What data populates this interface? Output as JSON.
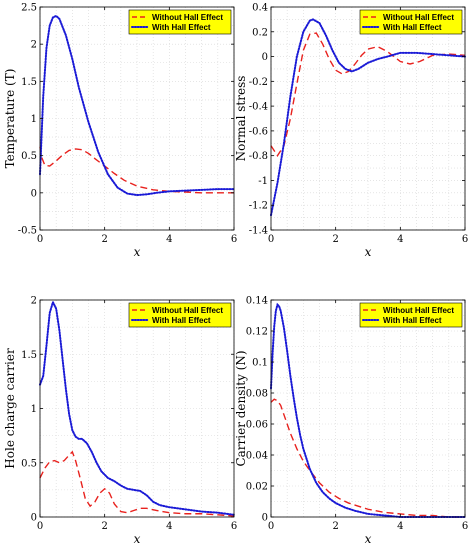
{
  "colors": {
    "without": "#e8221e",
    "with": "#1a1ad6",
    "legend_bg": "#ffff00",
    "grid": "#d6d6d6"
  },
  "legend": {
    "without": "Without Hall Effect",
    "with": "With Hall Effect"
  },
  "chart_data": [
    {
      "type": "line",
      "xlabel": "x",
      "ylabel": "Temperature (T)",
      "xlim": [
        0,
        6
      ],
      "ylim": [
        -0.5,
        2.5
      ],
      "xticks": [
        0,
        2,
        4,
        6
      ],
      "yticks": [
        -0.5,
        0,
        0.5,
        1,
        1.5,
        2,
        2.5
      ],
      "grid": true,
      "legend_position": "top-right",
      "series": [
        {
          "name": "Without Hall Effect",
          "x": [
            0,
            0.05,
            0.15,
            0.3,
            0.5,
            0.7,
            0.9,
            1.1,
            1.3,
            1.5,
            1.7,
            2.0,
            2.3,
            2.6,
            3.0,
            3.5,
            4.0,
            4.5,
            5.0,
            6.0
          ],
          "y": [
            0.62,
            0.48,
            0.37,
            0.36,
            0.43,
            0.51,
            0.57,
            0.59,
            0.58,
            0.53,
            0.46,
            0.36,
            0.26,
            0.17,
            0.09,
            0.04,
            0.02,
            0.01,
            0.0,
            0.0
          ]
        },
        {
          "name": "With Hall Effect",
          "x": [
            0,
            0.1,
            0.2,
            0.3,
            0.4,
            0.5,
            0.6,
            0.8,
            1.0,
            1.2,
            1.5,
            1.8,
            2.1,
            2.4,
            2.7,
            3.0,
            3.3,
            3.6,
            4.0,
            4.5,
            5.0,
            5.5,
            6.0
          ],
          "y": [
            0.25,
            1.3,
            1.95,
            2.25,
            2.36,
            2.38,
            2.34,
            2.12,
            1.8,
            1.42,
            0.95,
            0.55,
            0.25,
            0.07,
            -0.01,
            -0.03,
            -0.02,
            0.0,
            0.02,
            0.03,
            0.04,
            0.05,
            0.05
          ]
        }
      ]
    },
    {
      "type": "line",
      "xlabel": "x",
      "ylabel": "Normal stress",
      "xlim": [
        0,
        6
      ],
      "ylim": [
        -1.4,
        0.4
      ],
      "xticks": [
        0,
        2,
        4,
        6
      ],
      "yticks": [
        -1.4,
        -1.2,
        -1,
        -0.8,
        -0.6,
        -0.4,
        -0.2,
        0,
        0.2,
        0.4
      ],
      "grid": true,
      "legend_position": "top-right",
      "series": [
        {
          "name": "Without Hall Effect",
          "x": [
            0,
            0.2,
            0.4,
            0.6,
            0.8,
            1.0,
            1.2,
            1.4,
            1.6,
            1.8,
            2.0,
            2.2,
            2.4,
            2.6,
            2.8,
            3.0,
            3.3,
            3.6,
            4.0,
            4.3,
            4.6,
            5.0,
            5.5,
            6.0
          ],
          "y": [
            -0.72,
            -0.8,
            -0.72,
            -0.5,
            -0.22,
            0.05,
            0.18,
            0.19,
            0.1,
            -0.02,
            -0.11,
            -0.14,
            -0.12,
            -0.06,
            0.01,
            0.06,
            0.08,
            0.04,
            -0.04,
            -0.06,
            -0.04,
            0.01,
            0.02,
            0.01
          ]
        },
        {
          "name": "With Hall Effect",
          "x": [
            0,
            0.2,
            0.4,
            0.6,
            0.8,
            1.0,
            1.2,
            1.3,
            1.5,
            1.7,
            1.9,
            2.1,
            2.3,
            2.5,
            2.7,
            3.0,
            3.3,
            3.6,
            4.0,
            4.5,
            5.0,
            5.5,
            6.0
          ],
          "y": [
            -1.28,
            -1.02,
            -0.7,
            -0.32,
            0.0,
            0.2,
            0.29,
            0.3,
            0.27,
            0.17,
            0.05,
            -0.05,
            -0.1,
            -0.12,
            -0.1,
            -0.05,
            -0.02,
            0.0,
            0.03,
            0.03,
            0.02,
            0.01,
            0.0
          ]
        }
      ]
    },
    {
      "type": "line",
      "xlabel": "x",
      "ylabel": "Hole charge carrier",
      "xlim": [
        0,
        6
      ],
      "ylim": [
        0,
        2
      ],
      "xticks": [
        0,
        2,
        4,
        6
      ],
      "yticks": [
        0,
        0.5,
        1,
        1.5,
        2
      ],
      "grid": true,
      "legend_position": "top-right",
      "series": [
        {
          "name": "Without Hall Effect",
          "x": [
            0,
            0.15,
            0.3,
            0.45,
            0.6,
            0.75,
            0.9,
            1.0,
            1.1,
            1.25,
            1.4,
            1.55,
            1.7,
            1.85,
            2.0,
            2.15,
            2.3,
            2.5,
            2.7,
            2.9,
            3.1,
            3.3,
            3.6,
            4.0,
            4.5,
            5.0,
            5.5,
            6.0
          ],
          "y": [
            0.36,
            0.45,
            0.51,
            0.52,
            0.5,
            0.52,
            0.57,
            0.6,
            0.52,
            0.35,
            0.17,
            0.1,
            0.14,
            0.22,
            0.26,
            0.22,
            0.12,
            0.05,
            0.04,
            0.06,
            0.08,
            0.08,
            0.06,
            0.04,
            0.03,
            0.03,
            0.02,
            0.01
          ]
        },
        {
          "name": "With Hall Effect",
          "x": [
            0,
            0.1,
            0.2,
            0.3,
            0.4,
            0.5,
            0.6,
            0.7,
            0.8,
            0.9,
            1.0,
            1.1,
            1.2,
            1.3,
            1.45,
            1.6,
            1.75,
            1.9,
            2.1,
            2.3,
            2.5,
            2.7,
            2.9,
            3.1,
            3.3,
            3.5,
            3.7,
            4.0,
            4.5,
            5.0,
            5.5,
            6.0
          ],
          "y": [
            1.22,
            1.3,
            1.58,
            1.88,
            1.98,
            1.92,
            1.72,
            1.45,
            1.18,
            0.95,
            0.8,
            0.74,
            0.72,
            0.72,
            0.68,
            0.6,
            0.5,
            0.42,
            0.36,
            0.33,
            0.29,
            0.26,
            0.25,
            0.24,
            0.2,
            0.14,
            0.11,
            0.09,
            0.07,
            0.05,
            0.04,
            0.02
          ]
        }
      ]
    },
    {
      "type": "line",
      "xlabel": "x",
      "ylabel": "Carrier density (N)",
      "xlim": [
        0,
        6
      ],
      "ylim": [
        0,
        0.14
      ],
      "xticks": [
        0,
        2,
        4,
        6
      ],
      "yticks": [
        0,
        0.02,
        0.04,
        0.06,
        0.08,
        0.1,
        0.12,
        0.14
      ],
      "grid": true,
      "legend_position": "top-right",
      "series": [
        {
          "name": "Without Hall Effect",
          "x": [
            0,
            0.1,
            0.2,
            0.3,
            0.4,
            0.5,
            0.6,
            0.8,
            1.0,
            1.2,
            1.5,
            1.8,
            2.1,
            2.4,
            2.7,
            3.0,
            3.5,
            4.0,
            4.5,
            5.0,
            5.5,
            6.0
          ],
          "y": [
            0.074,
            0.076,
            0.075,
            0.072,
            0.066,
            0.06,
            0.054,
            0.044,
            0.036,
            0.03,
            0.022,
            0.016,
            0.012,
            0.009,
            0.007,
            0.005,
            0.003,
            0.002,
            0.001,
            0.001,
            0.0,
            0.0
          ]
        },
        {
          "name": "With Hall Effect",
          "x": [
            0,
            0.05,
            0.1,
            0.15,
            0.2,
            0.25,
            0.3,
            0.4,
            0.5,
            0.6,
            0.7,
            0.8,
            0.9,
            1.0,
            1.2,
            1.4,
            1.6,
            1.8,
            2.0,
            2.3,
            2.6,
            3.0,
            3.5,
            4.0,
            5.0,
            6.0
          ],
          "y": [
            0.083,
            0.106,
            0.123,
            0.133,
            0.137,
            0.136,
            0.133,
            0.122,
            0.107,
            0.091,
            0.077,
            0.064,
            0.053,
            0.044,
            0.031,
            0.022,
            0.016,
            0.012,
            0.009,
            0.006,
            0.004,
            0.002,
            0.001,
            0.0,
            0.0,
            0.0
          ]
        }
      ]
    }
  ]
}
